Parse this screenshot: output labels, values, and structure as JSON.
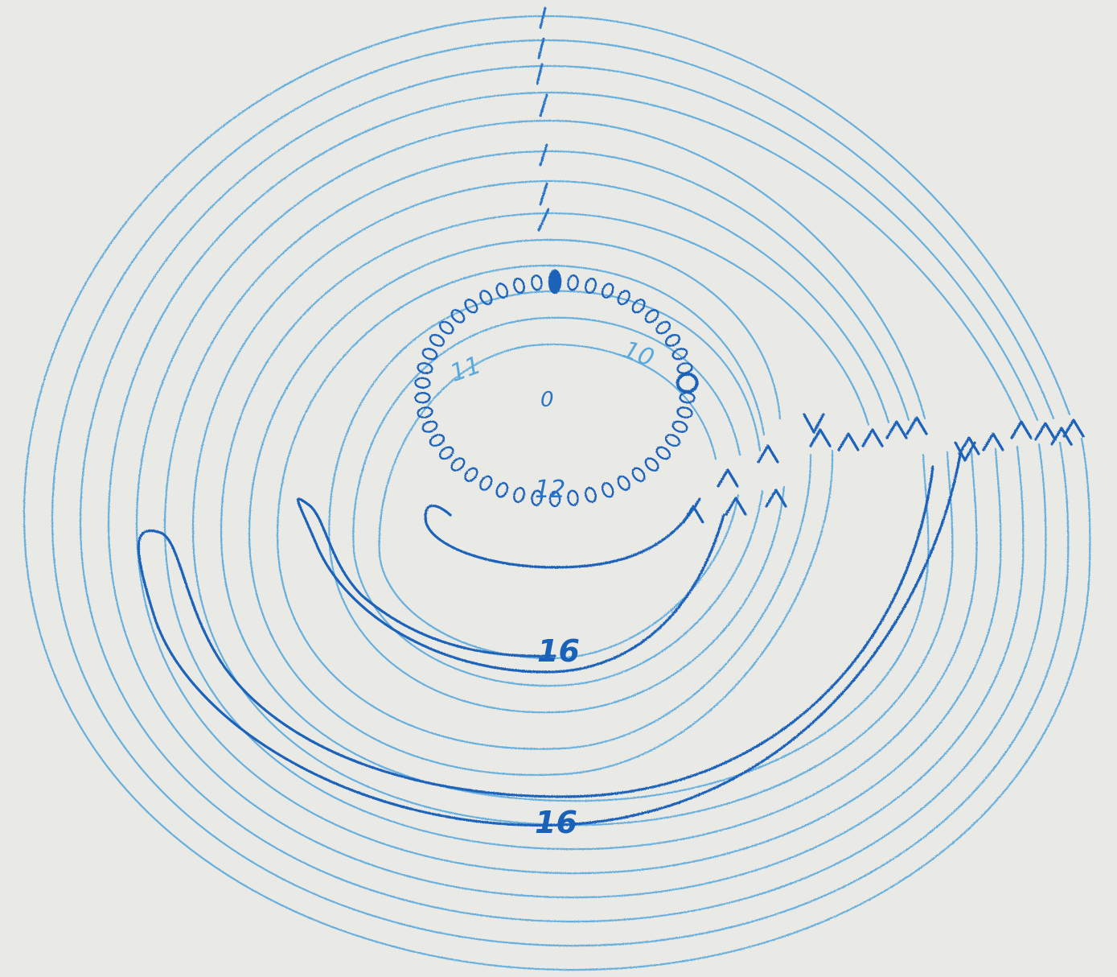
{
  "diagram": {
    "labels": {
      "center": "0",
      "left_inner": "11",
      "right_inner": "10",
      "bottom_inner": "12",
      "mid_loop": "16",
      "outer_loop": "16"
    },
    "colors": {
      "paper": "#e9e9e6",
      "pencil_light": "#5aa9dc",
      "pencil_dark": "#1a62b8"
    }
  }
}
